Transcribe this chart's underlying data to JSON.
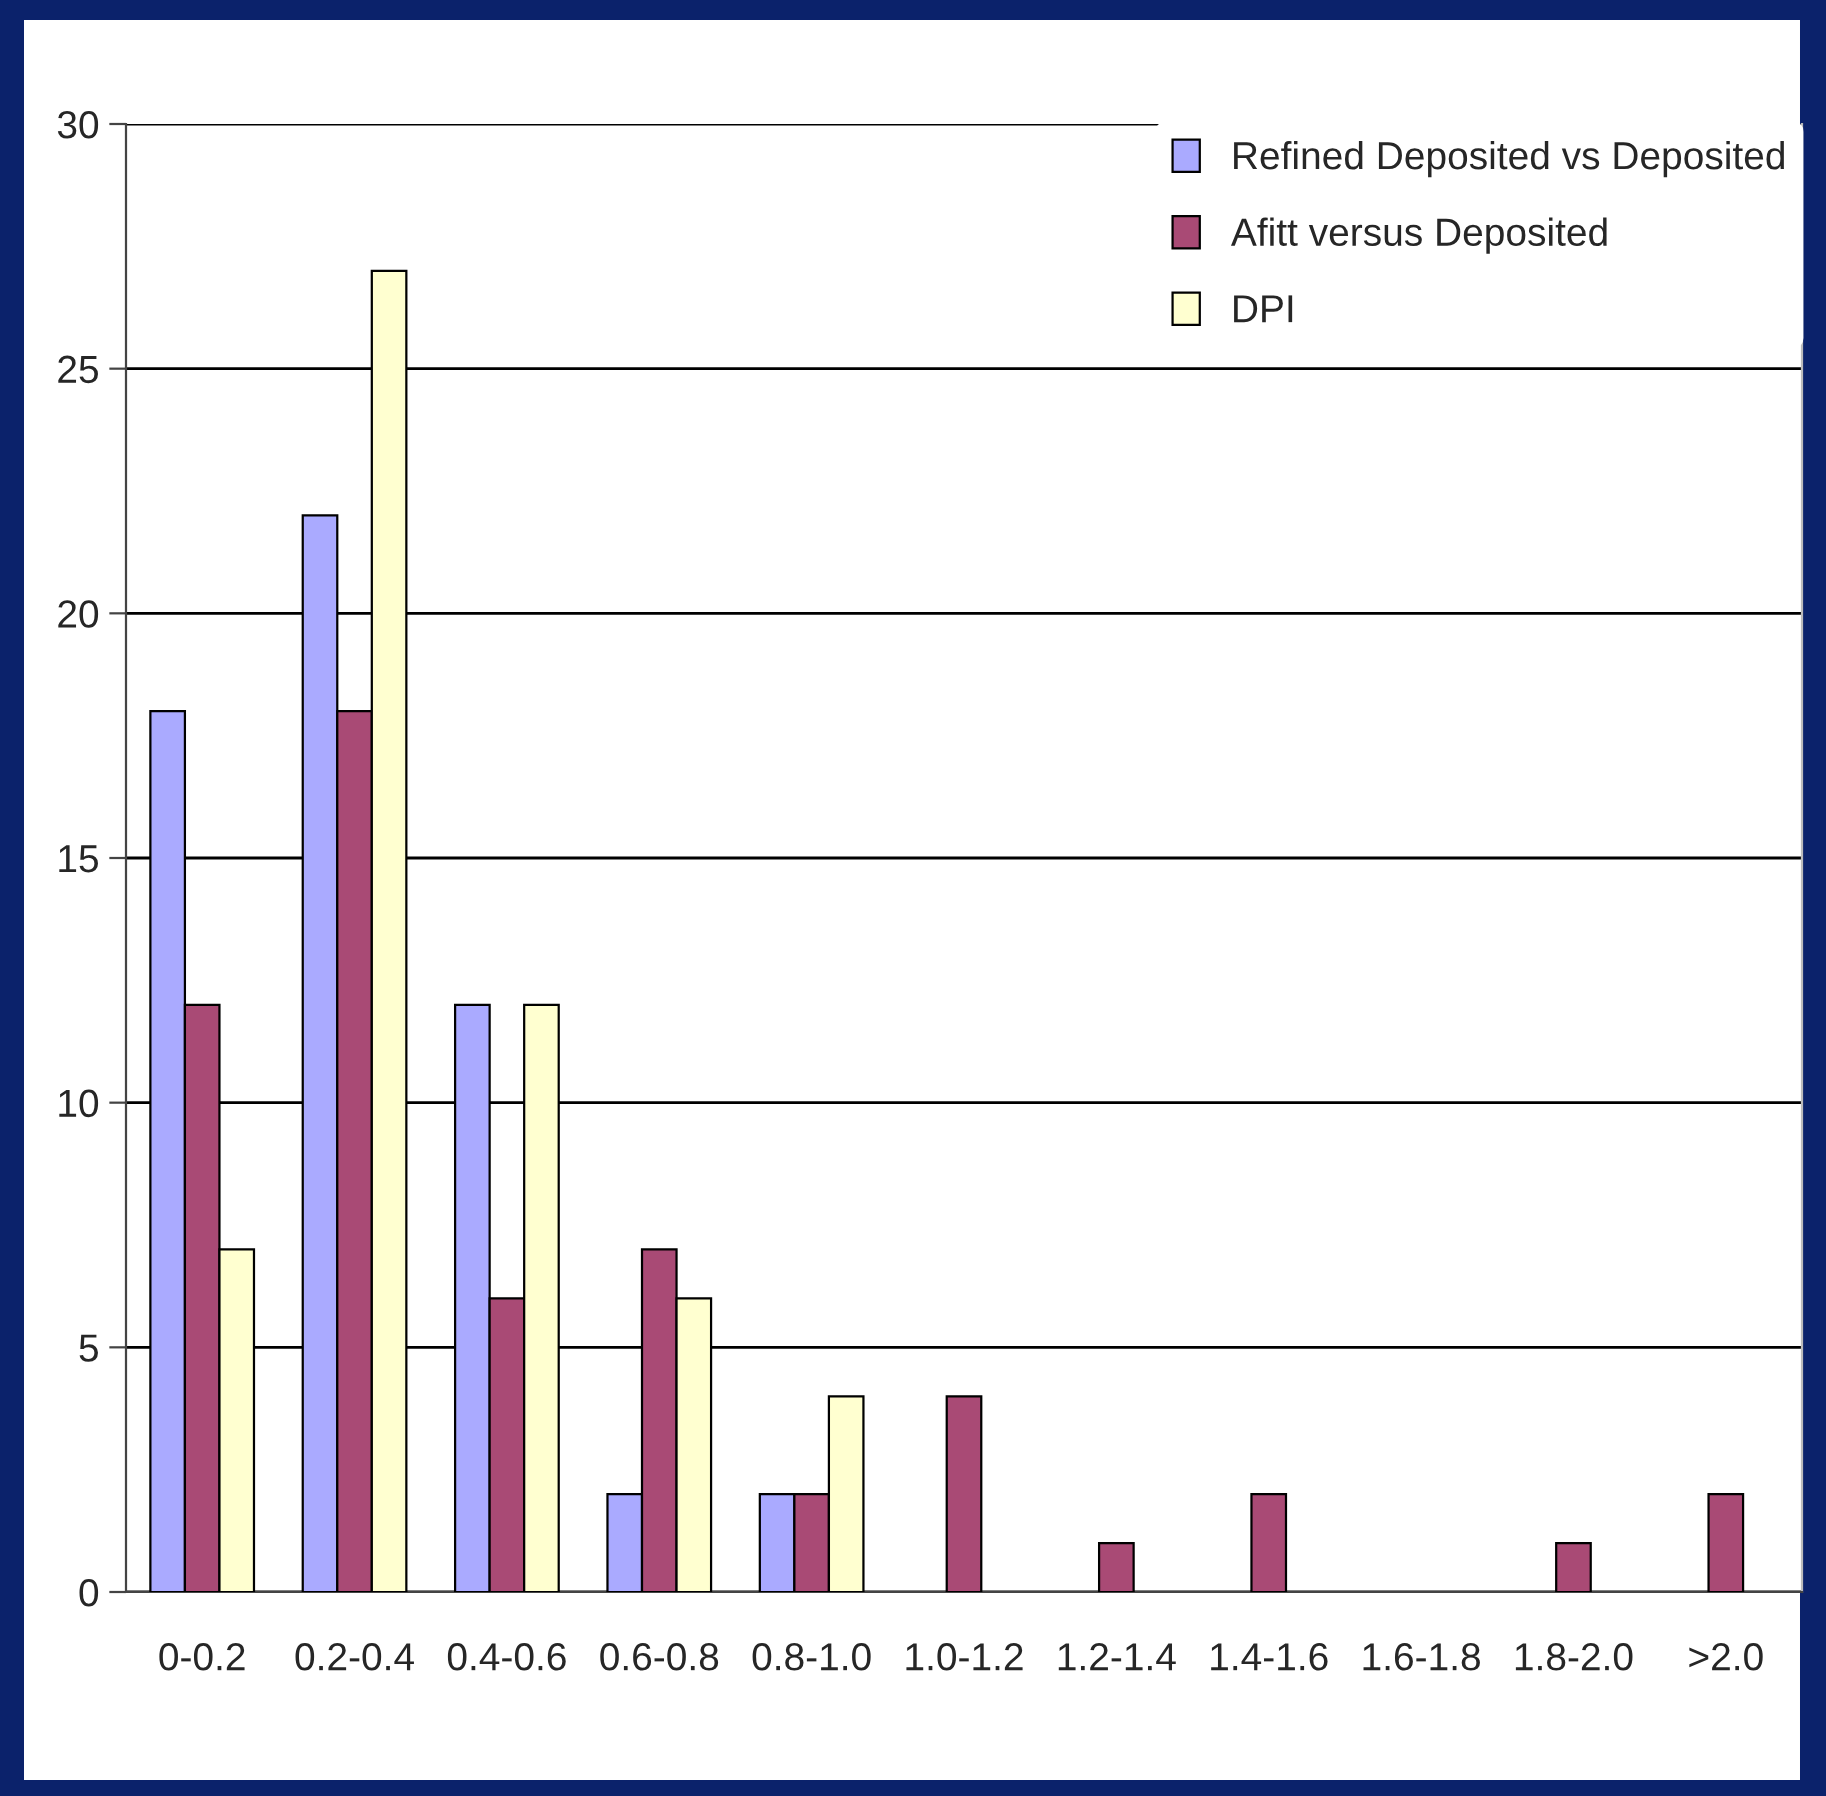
{
  "chart_data": {
    "type": "bar",
    "categories": [
      "0-0.2",
      "0.2-0.4",
      "0.4-0.6",
      "0.6-0.8",
      "0.8-1.0",
      "1.0-1.2",
      "1.2-1.4",
      "1.4-1.6",
      "1.6-1.8",
      "1.8-2.0",
      ">2.0"
    ],
    "series": [
      {
        "name": "Refined Deposited vs Deposited",
        "color": "#aaaaff",
        "values": [
          18,
          22,
          12,
          2,
          2,
          null,
          null,
          null,
          null,
          null,
          null
        ]
      },
      {
        "name": "Afitt versus Deposited",
        "color": "#a94a75",
        "values": [
          12,
          18,
          6,
          7,
          2,
          4,
          1,
          2,
          null,
          1,
          2
        ]
      },
      {
        "name": "DPI",
        "color": "#ffffd0",
        "values": [
          7,
          27,
          12,
          6,
          4,
          null,
          null,
          null,
          null,
          null,
          null
        ]
      }
    ],
    "ylim": [
      0,
      30
    ],
    "yticks": [
      0,
      5,
      10,
      15,
      20,
      25,
      30
    ],
    "grid": "y",
    "legend": "top right"
  }
}
